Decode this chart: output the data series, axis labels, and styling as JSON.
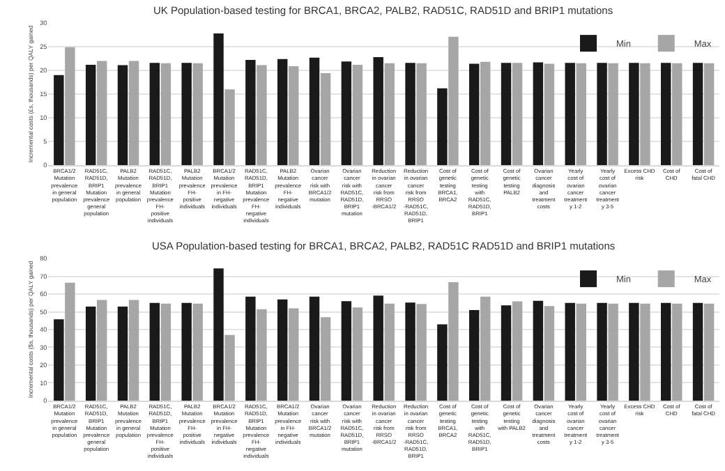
{
  "chart_data": [
    {
      "type": "bar",
      "title": "UK Population-based testing for BRCA1, BRCA2, PALB2, RAD51C, RAD51D and BRIP1 mutations",
      "ylabel": "Incremental costs (£s, thousands) per QALY gained",
      "categories": [
        "BRCA1/2 Mutation prevalence in general population",
        "RAD51C, RAD51D, BRIP1 Mutation prevalence general population",
        "PALB2 Mutation prevalence in general population",
        "RAD51C, RAD51D, BRIP1 Mutation prevalence FH-positive individuals",
        "PALB2 Mutation prevalence FH-positive individuals",
        "BRCA1/2 Mutation prevalence in FH-negative individuals",
        "RAD51C, RAD51D, BRIP1 Mutation prevalence FH-negative individuals",
        "PALB2 Mutation prevalence FH-negative individuals",
        "Ovarian cancer risk with BRCA1/2 mutation",
        "Ovarian cancer risk with RAD51C, RAD51D, BRIP1 mutation",
        "Reduction in ovarian cancer risk from RRSO -BRCA1/2",
        "Reduction in ovarian cancer risk from RRSO -RAD51C, RAD51D, BRIP1",
        "Cost of genetic testing BRCA1, BRCA2",
        "Cost of genetic testing with RAD51C, RAD51D, BRIP1",
        "Cost of genetic testing PALB2",
        "Ovarian cancer diagnosis and treatment costs",
        "Yearly cost of ovarian cancer treatment y 1-2",
        "Yearly cost of ovarian cancer treatment y 3-5",
        "Excess CHD risk",
        "Cost of CHD",
        "Cost of fatal CHD"
      ],
      "series": [
        {
          "name": "Min",
          "color": "#1a1a1a",
          "values": [
            19.0,
            21.2,
            21.1,
            21.6,
            21.6,
            27.8,
            22.2,
            22.4,
            22.7,
            21.9,
            22.8,
            21.6,
            16.2,
            21.4,
            21.6,
            21.7,
            21.6,
            21.6,
            21.6,
            21.6,
            21.6
          ]
        },
        {
          "name": "Max",
          "color": "#a6a6a6",
          "values": [
            24.9,
            22.0,
            22.0,
            21.5,
            21.5,
            16.0,
            21.1,
            20.9,
            19.4,
            21.2,
            21.5,
            21.5,
            27.1,
            21.8,
            21.6,
            21.4,
            21.5,
            21.5,
            21.5,
            21.5,
            21.5
          ]
        }
      ],
      "ylim": [
        0,
        30
      ],
      "yticks": [
        0,
        5,
        10,
        15,
        20,
        25,
        30
      ],
      "grid": "y",
      "legend": "top right"
    },
    {
      "type": "bar",
      "title": "USA Population-based testing for BRCA1, BRCA2, PALB2, RAD51C RAD51D and BRIP1 mutations",
      "ylabel": "Incremental costs ($s, thousands) per QALY gained",
      "categories": [
        "BRCA1/2 Mutation prevalence in general population",
        "RAD51C, RAD51D, BRIP1 Mutation prevalence general population",
        "PALB2 Mutation prevalence in general population",
        "RAD51C, RAD51D, BRIP1 Mutation prevalence FH-positive individuals",
        "PALB2 Mutation prevalence FH-positive individuals",
        "BRCA1/2 Mutation prevalence in FH-negative individuals",
        "RAD51C, RAD51D, BRIP1 Mutation prevalence FH-negative individuals",
        "BRCA1/2 Mutation prevalence in FH-negative individuals",
        "Ovarian cancer risk with BRCA1/2 mutation",
        "Ovarian cancer risk with RAD51C, RAD51D, BRIP1 mutation",
        "Reduction in ovarian cancer risk from RRSO -BRCA1/2",
        "Reduction in ovarian cancer risk from RRSO -RAD51C, RAD51D, BRIP1",
        "Cost of genetic testing BRCA1, BRCA2",
        "Cost of genetic testing with RAD51C, RAD51D, BRIP1",
        "Cost of genetic testing with PALB2",
        "Ovarian cancer diagnosis and treatment costs",
        "Yearly cost of ovarian cancer treatment y 1-2",
        "Yearly cost of ovarian cancer treatment y 3-5",
        "Excess CHD risk",
        "Cost of CHD",
        "Cost of fatal CHD"
      ],
      "series": [
        {
          "name": "Min",
          "color": "#1a1a1a",
          "values": [
            45.8,
            53.0,
            53.0,
            55.0,
            55.0,
            74.5,
            58.5,
            57.0,
            58.5,
            56.0,
            59.1,
            55.2,
            42.9,
            51.0,
            53.6,
            56.2,
            55.0,
            55.0,
            55.0,
            55.0,
            55.0
          ]
        },
        {
          "name": "Max",
          "color": "#a6a6a6",
          "values": [
            66.4,
            56.7,
            56.7,
            54.6,
            54.6,
            37.0,
            51.5,
            52.0,
            47.0,
            52.5,
            54.6,
            54.4,
            66.7,
            58.6,
            55.9,
            53.3,
            54.6,
            54.6,
            54.6,
            54.6,
            54.6
          ]
        }
      ],
      "ylim": [
        0,
        80
      ],
      "yticks": [
        0,
        10,
        20,
        30,
        40,
        50,
        60,
        70,
        80
      ],
      "grid": "y",
      "legend": "top right"
    }
  ]
}
